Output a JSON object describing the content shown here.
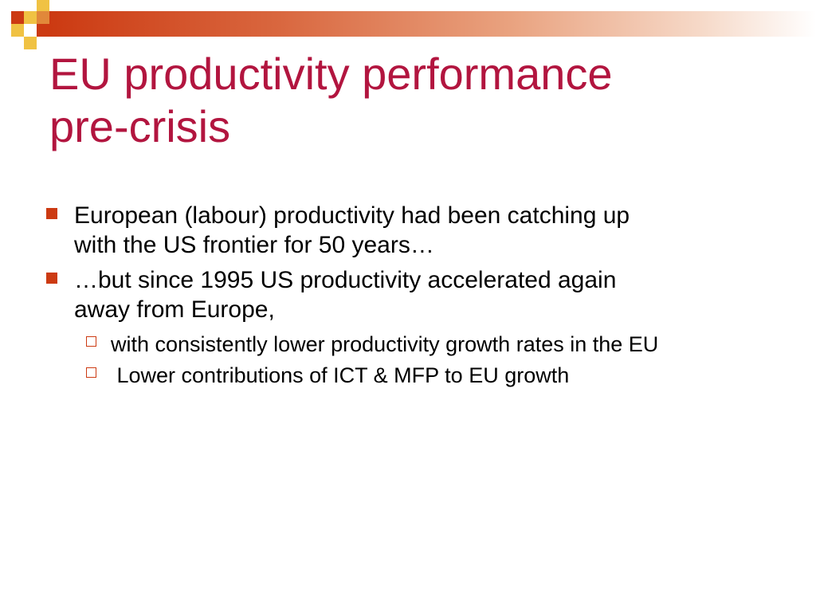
{
  "slide": {
    "title_lines": [
      "EU productivity performance",
      "pre-crisis"
    ],
    "bullets": [
      {
        "lines": [
          "European (labour) productivity had been catching up",
          "with the US frontier for 50 years…"
        ]
      },
      {
        "lines": [
          "…but since 1995 US productivity accelerated again",
          "away from Europe,"
        ],
        "sub_bullets": [
          "with consistently lower productivity growth rates in the EU",
          " Lower contributions of ICT & MFP to EU growth"
        ]
      }
    ]
  },
  "colors": {
    "title": "#b2153f",
    "accent": "#cc3a12",
    "mosaic_yellow": "#f0c243"
  }
}
